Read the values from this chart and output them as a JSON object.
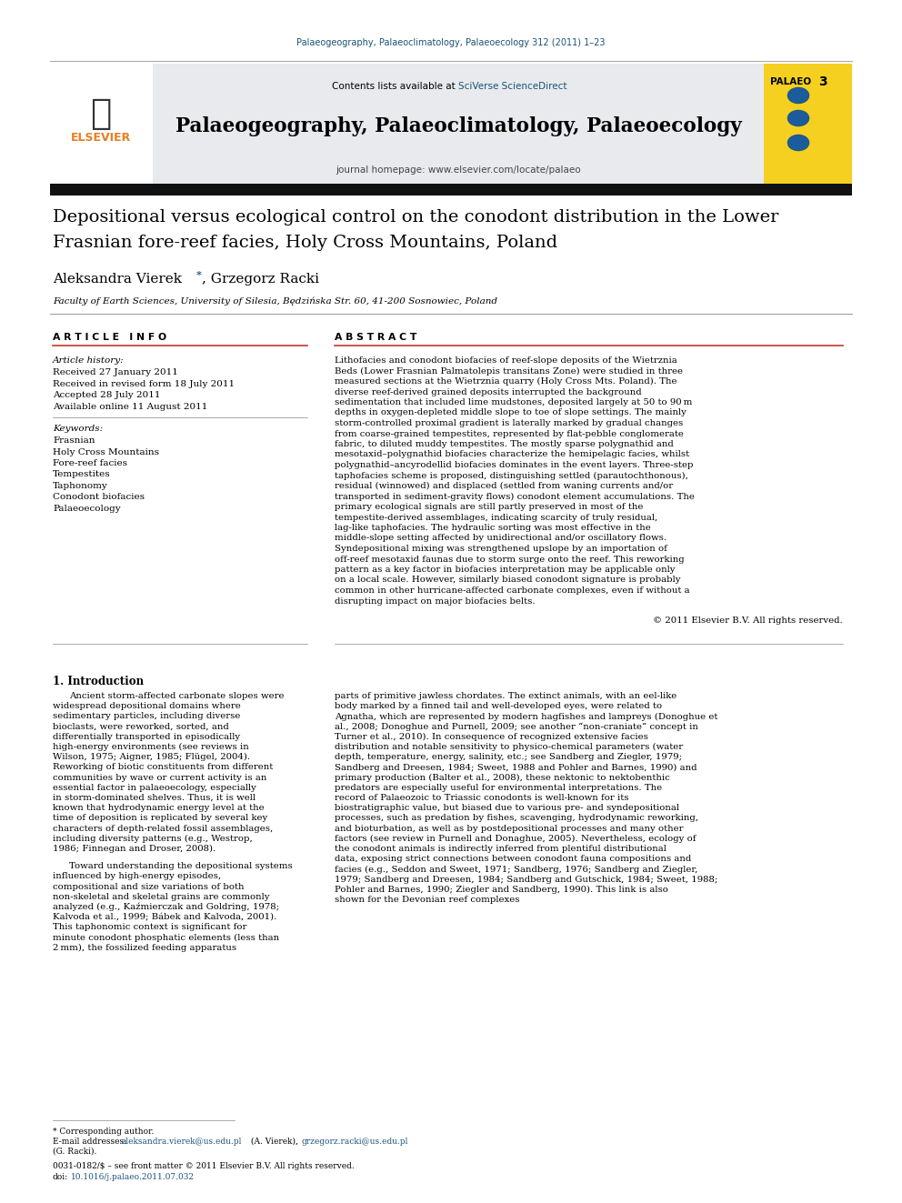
{
  "page_title": "Palaeogeography, Palaeoclimatology, Palaeoecology 312 (2011) 1–23",
  "journal_name": "Palaeogeography, Palaeoclimatology, Palaeoecology",
  "journal_homepage": "journal homepage: www.elsevier.com/locate/palaeo",
  "article_title_line1": "Depositional versus ecological control on the conodont distribution in the Lower",
  "article_title_line2": "Frasnian fore-reef facies, Holy Cross Mountains, Poland",
  "author_main": "Aleksandra Vierek",
  "author_rest": ", Grzegorz Racki",
  "affiliation": "Faculty of Earth Sciences, University of Silesia, Będzińska Str. 60, 41-200 Sosnowiec, Poland",
  "article_info_header": "A R T I C L E   I N F O",
  "abstract_header": "A B S T R A C T",
  "article_history_label": "Article history:",
  "received": "Received 27 January 2011",
  "received_revised": "Received in revised form 18 July 2011",
  "accepted": "Accepted 28 July 2011",
  "available_online": "Available online 11 August 2011",
  "keywords_label": "Keywords:",
  "keywords": [
    "Frasnian",
    "Holy Cross Mountains",
    "Fore-reef facies",
    "Tempestites",
    "Taphonomy",
    "Conodont biofacies",
    "Palaeoecology"
  ],
  "abstract_text": "Lithofacies and conodont biofacies of reef-slope deposits of the Wietrznia Beds (Lower Frasnian Palmatolepis transitans Zone) were studied in three measured sections at the Wietrznia quarry (Holy Cross Mts. Poland). The diverse reef-derived grained deposits interrupted the background sedimentation that included lime mudstones, deposited largely at 50 to 90 m depths in oxygen-depleted middle slope to toe of slope settings. The mainly storm-controlled proximal gradient is laterally marked by gradual changes from coarse-grained tempestites, represented by flat-pebble conglomerate fabric, to diluted muddy tempestites. The mostly sparse polygnathid and mesotaxid–polygnathid biofacies characterize the hemipelagic facies, whilst polygnathid–ancyrodellid biofacies dominates in the event layers. Three-step taphofacies scheme is proposed, distinguishing settled (parautochthonous), residual (winnowed) and displaced (settled from waning currents and/or transported in sediment-gravity flows) conodont element accumulations. The primary ecological signals are still partly preserved in most of the tempestite-derived assemblages, indicating scarcity of truly residual, lag-like taphofacies. The hydraulic sorting was most effective in the middle-slope setting affected by unidirectional and/or oscillatory flows. Syndepositional mixing was strengthened upslope by an importation of off-reef mesotaxid faunas due to storm surge onto the reef. This reworking pattern as a key factor in biofacies interpretation may be applicable only on a local scale. However, similarly biased conodont signature is probably common in other hurricane-affected carbonate complexes, even if without a disrupting impact on major biofacies belts.",
  "copyright": "© 2011 Elsevier B.V. All rights reserved.",
  "section1_title": "1. Introduction",
  "intro_left_para1": "Ancient storm-affected carbonate slopes were widespread depositional domains where sedimentary particles, including diverse bioclasts, were reworked, sorted, and differentially transported in episodically high-energy environments (see reviews in Wilson, 1975; Aigner, 1985; Flügel, 2004). Reworking of biotic constituents from different communities by wave or current activity is an essential factor in palaeoecology, especially in storm-dominated shelves. Thus, it is well known that hydrodynamic energy level at the time of deposition is replicated by several key characters of depth-related fossil assemblages, including diversity patterns (e.g., Westrop, 1986; Finnegan and Droser, 2008).",
  "intro_left_para2": "Toward understanding the depositional systems influenced by high-energy episodes, compositional and size variations of both non-skeletal and skeletal grains are commonly analyzed (e.g., Kaźmierczak and Goldring, 1978; Kalvoda et al., 1999; Bábek and Kalvoda, 2001). This taphonomic context is significant for minute conodont phosphatic elements (less than 2 mm), the fossilized feeding apparatus",
  "intro_right_text": "parts of primitive jawless chordates. The extinct animals, with an eel-like body marked by a finned tail and well-developed eyes, were related to Agnatha, which are represented by modern hagfishes and lampreys (Donoghue et al., 2008; Donoghue and Purnell, 2009; see another “non-craniate” concept in Turner et al., 2010). In consequence of recognized extensive facies distribution and notable sensitivity to physico-chemical parameters (water depth, temperature, energy, salinity, etc.; see Sandberg and Ziegler, 1979; Sandberg and Dreesen, 1984; Sweet, 1988 and Pohler and Barnes, 1990) and primary production (Balter et al., 2008), these nektonic to nektobenthic predators are especially useful for environmental interpretations. The record of Palaeozoic to Triassic conodonts is well-known for its biostratigraphic value, but biased due to various pre- and syndepositional processes, such as predation by fishes, scavenging, hydrodynamic reworking, and bioturbation, as well as by postdepositional processes and many other factors (see review in Purnell and Donaghue, 2005). Nevertheless, ecology of the conodont animals is indirectly inferred from plentiful distributional data, exposing strict connections between conodont fauna compositions and facies (e.g., Seddon and Sweet, 1971; Sandberg, 1976; Sandberg and Ziegler, 1979; Sandberg and Dreesen, 1984; Sandberg and Gutschick, 1984; Sweet, 1988; Pohler and Barnes, 1990; Ziegler and Sandberg, 1990). This link is also shown for the Devonian reef complexes",
  "footnote_star": "* Corresponding author.",
  "footnote_email1": "E-mail addresses: ",
  "footnote_email2": "aleksandra.vierek@us.edu.pl",
  "footnote_email3": " (A. Vierek), ",
  "footnote_email4": "grzegorz.racki@us.edu.pl",
  "footnote_email5": " (G. Racki).",
  "footer_line1": "0031-0182/$ – see front matter © 2011 Elsevier B.V. All rights reserved.",
  "footer_line2_prefix": "doi:",
  "footer_line2_link": "10.1016/j.palaeo.2011.07.032",
  "bg_color": "#ffffff",
  "header_bg": "#e8eaed",
  "blue_color": "#1a5276",
  "orange_color": "#e67e22",
  "palaeo_yellow": "#f5d020",
  "red_line_color": "#c0392b",
  "gray_line": "#999999",
  "black": "#000000"
}
